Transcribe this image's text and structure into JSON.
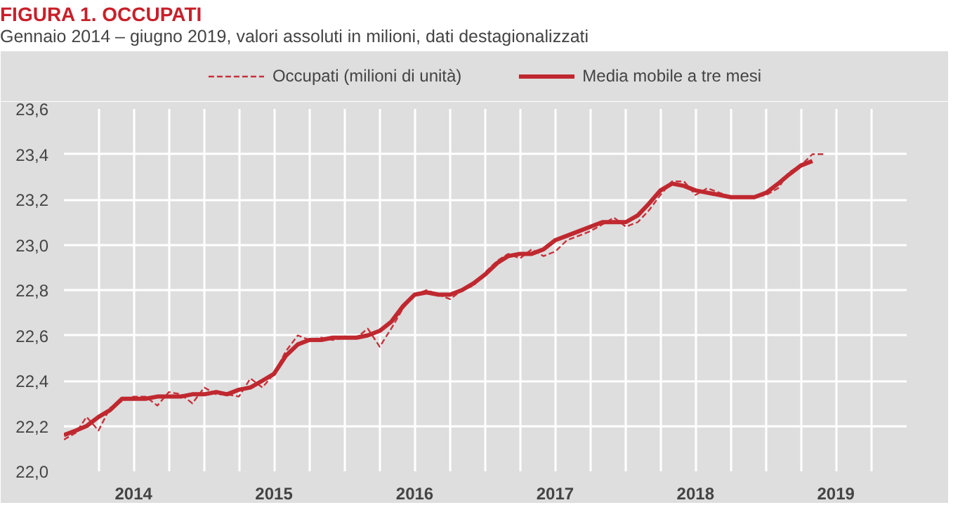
{
  "chart_data": {
    "type": "line",
    "title": "FIGURA 1. OCCUPATI",
    "subtitle": "Gennaio 2014 – giugno 2019, valori assoluti in milioni, dati destagionalizzati",
    "x": [
      "2014-01",
      "2014-02",
      "2014-03",
      "2014-04",
      "2014-05",
      "2014-06",
      "2014-07",
      "2014-08",
      "2014-09",
      "2014-10",
      "2014-11",
      "2014-12",
      "2015-01",
      "2015-02",
      "2015-03",
      "2015-04",
      "2015-05",
      "2015-06",
      "2015-07",
      "2015-08",
      "2015-09",
      "2015-10",
      "2015-11",
      "2015-12",
      "2016-01",
      "2016-02",
      "2016-03",
      "2016-04",
      "2016-05",
      "2016-06",
      "2016-07",
      "2016-08",
      "2016-09",
      "2016-10",
      "2016-11",
      "2016-12",
      "2017-01",
      "2017-02",
      "2017-03",
      "2017-04",
      "2017-05",
      "2017-06",
      "2017-07",
      "2017-08",
      "2017-09",
      "2017-10",
      "2017-11",
      "2017-12",
      "2018-01",
      "2018-02",
      "2018-03",
      "2018-04",
      "2018-05",
      "2018-06",
      "2018-07",
      "2018-08",
      "2018-09",
      "2018-10",
      "2018-11",
      "2018-12",
      "2019-01",
      "2019-02",
      "2019-03",
      "2019-04",
      "2019-05",
      "2019-06"
    ],
    "series": [
      {
        "name": "Occupati (milioni di unità)",
        "color": "#c8323c",
        "line_style": "dashed",
        "values": [
          22.14,
          22.17,
          22.24,
          22.18,
          22.28,
          22.31,
          22.33,
          22.33,
          22.29,
          22.35,
          22.34,
          22.3,
          22.37,
          22.34,
          22.34,
          22.33,
          22.41,
          22.37,
          22.43,
          22.53,
          22.6,
          22.58,
          22.59,
          22.58,
          22.59,
          22.59,
          22.63,
          22.55,
          22.63,
          22.72,
          22.78,
          22.8,
          22.78,
          22.76,
          22.8,
          22.82,
          22.88,
          22.93,
          22.96,
          22.94,
          22.98,
          22.95,
          22.97,
          23.02,
          23.04,
          23.06,
          23.09,
          23.12,
          23.08,
          23.1,
          23.15,
          23.22,
          23.28,
          23.28,
          23.22,
          23.25,
          23.23,
          23.21,
          23.21,
          23.21,
          23.22,
          23.25,
          23.32,
          23.35,
          23.4,
          23.4
        ]
      },
      {
        "name": "Media mobile a tre mesi",
        "color": "#c0282f",
        "line_style": "solid",
        "values": [
          22.16,
          22.18,
          22.2,
          22.24,
          22.27,
          22.32,
          22.32,
          22.32,
          22.33,
          22.33,
          22.33,
          22.34,
          22.34,
          22.35,
          22.34,
          22.36,
          22.37,
          22.4,
          22.43,
          22.51,
          22.56,
          22.58,
          22.58,
          22.59,
          22.59,
          22.59,
          22.6,
          22.62,
          22.66,
          22.73,
          22.78,
          22.79,
          22.78,
          22.78,
          22.8,
          22.83,
          22.87,
          22.92,
          22.95,
          22.96,
          22.96,
          22.98,
          23.02,
          23.04,
          23.06,
          23.08,
          23.1,
          23.1,
          23.1,
          23.13,
          23.18,
          23.24,
          23.27,
          23.26,
          23.24,
          23.23,
          23.22,
          23.21,
          23.21,
          23.21,
          23.23,
          23.27,
          23.31,
          23.35,
          23.37,
          null
        ]
      }
    ],
    "xlim": [
      "2014-01",
      "2020-01"
    ],
    "xticks": [
      {
        "value": "2014-01",
        "label": null
      },
      {
        "value": "2014-04",
        "label": null
      },
      {
        "value": "2014-07",
        "label": "2014"
      },
      {
        "value": "2014-10",
        "label": null
      },
      {
        "value": "2015-01",
        "label": null
      },
      {
        "value": "2015-04",
        "label": null
      },
      {
        "value": "2015-07",
        "label": "2015"
      },
      {
        "value": "2015-10",
        "label": null
      },
      {
        "value": "2016-01",
        "label": null
      },
      {
        "value": "2016-04",
        "label": null
      },
      {
        "value": "2016-07",
        "label": "2016"
      },
      {
        "value": "2016-10",
        "label": null
      },
      {
        "value": "2017-01",
        "label": null
      },
      {
        "value": "2017-04",
        "label": null
      },
      {
        "value": "2017-07",
        "label": "2017"
      },
      {
        "value": "2017-10",
        "label": null
      },
      {
        "value": "2018-01",
        "label": null
      },
      {
        "value": "2018-04",
        "label": null
      },
      {
        "value": "2018-07",
        "label": "2018"
      },
      {
        "value": "2018-10",
        "label": null
      },
      {
        "value": "2019-01",
        "label": null
      },
      {
        "value": "2019-04",
        "label": null
      },
      {
        "value": "2019-07",
        "label": "2019"
      },
      {
        "value": "2019-10",
        "label": null
      },
      {
        "value": "2020-01",
        "label": null
      }
    ],
    "ylim": [
      22.0,
      23.6
    ],
    "yticks": [
      {
        "value": 22.0,
        "label": "22,0"
      },
      {
        "value": 22.2,
        "label": "22,2"
      },
      {
        "value": 22.4,
        "label": "22,4"
      },
      {
        "value": 22.6,
        "label": "22,6"
      },
      {
        "value": 22.8,
        "label": "22,8"
      },
      {
        "value": 23.0,
        "label": "23,0"
      },
      {
        "value": 23.2,
        "label": "23,2"
      },
      {
        "value": 23.4,
        "label": "23,4"
      },
      {
        "value": 23.6,
        "label": "23,6"
      }
    ],
    "grid": true,
    "legend": "top",
    "marker": "none"
  }
}
